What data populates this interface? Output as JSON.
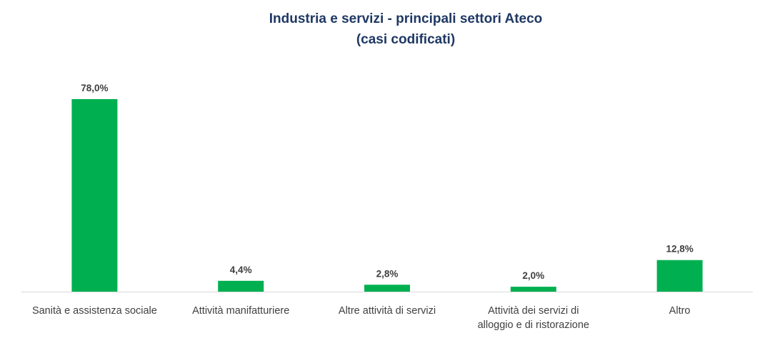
{
  "chart_data": {
    "type": "bar",
    "title": "Industria e servizi - principali settori Ateco",
    "subtitle": "(casi codificati)",
    "categories": [
      [
        "Sanità e assistenza sociale"
      ],
      [
        "Attività manifatturiere"
      ],
      [
        "Altre attività di servizi"
      ],
      [
        "Attività dei servizi di",
        "alloggio e di ristorazione"
      ],
      [
        "Altro"
      ]
    ],
    "values": [
      78.0,
      4.4,
      2.8,
      2.0,
      12.8
    ],
    "data_labels": [
      "78,0%",
      "4,4%",
      "2,8%",
      "2,0%",
      "12,8%"
    ],
    "bar_color": "#00b050",
    "ylim": [
      0,
      78
    ],
    "grid": false,
    "legend": "none"
  }
}
